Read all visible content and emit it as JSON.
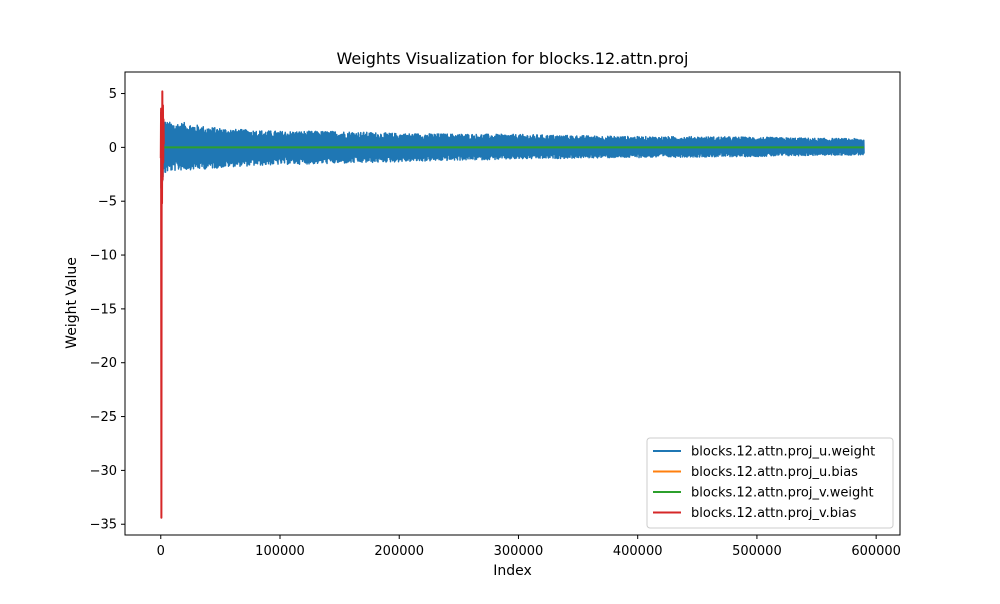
{
  "chart_data": {
    "type": "line",
    "title": "Weights Visualization for blocks.12.attn.proj",
    "xlabel": "Index",
    "ylabel": "Weight Value",
    "xlim": [
      -30000,
      620000
    ],
    "ylim": [
      -36,
      7
    ],
    "xticks": [
      0,
      100000,
      200000,
      300000,
      400000,
      500000,
      600000
    ],
    "xtick_labels": [
      "0",
      "100000",
      "200000",
      "300000",
      "400000",
      "500000",
      "600000"
    ],
    "yticks": [
      5,
      0,
      -5,
      -10,
      -15,
      -20,
      -25,
      -30,
      -35
    ],
    "ytick_labels": [
      "5",
      "0",
      "−5",
      "−10",
      "−15",
      "−20",
      "−25",
      "−30",
      "−35"
    ],
    "grid": false,
    "legend_position": "lower-right",
    "series": [
      {
        "name": "blocks.12.attn.proj_u.weight",
        "color": "#1f77b4",
        "n_points": 589824,
        "envelope": {
          "x": [
            0,
            768,
            1500,
            3000,
            5000,
            10000,
            20000,
            40000,
            60000,
            80000,
            100000,
            150000,
            200000,
            250000,
            300000,
            350000,
            400000,
            450000,
            500000,
            550000,
            589824
          ],
          "upper": [
            3.9,
            3.5,
            2.6,
            2.5,
            2.4,
            2.3,
            2.3,
            1.9,
            1.7,
            1.6,
            1.5,
            1.5,
            1.3,
            1.25,
            1.2,
            1.1,
            1.0,
            1.0,
            0.95,
            0.85,
            0.8
          ],
          "lower": [
            -5.5,
            -3.9,
            -3.0,
            -2.6,
            -2.3,
            -2.2,
            -2.1,
            -2.0,
            -1.8,
            -1.7,
            -1.6,
            -1.5,
            -1.35,
            -1.2,
            -1.1,
            -1.0,
            -0.95,
            -0.9,
            -0.85,
            -0.75,
            -0.7
          ]
        }
      },
      {
        "name": "blocks.12.attn.proj_u.bias",
        "color": "#ff7f0e",
        "x": [
          0,
          768
        ],
        "y": [
          0,
          0
        ]
      },
      {
        "name": "blocks.12.attn.proj_v.weight",
        "color": "#2ca02c",
        "x": [
          0,
          589824
        ],
        "y": [
          0,
          0
        ]
      },
      {
        "name": "blocks.12.attn.proj_v.bias",
        "color": "#d62728",
        "x": [
          0,
          80,
          160,
          240,
          320,
          400,
          480,
          560,
          640,
          700,
          768
        ],
        "y": [
          -1.0,
          3.6,
          -34.4,
          2.8,
          -5.2,
          5.2,
          -3.0,
          3.9,
          -1.4,
          2.6,
          0.3
        ]
      }
    ]
  }
}
